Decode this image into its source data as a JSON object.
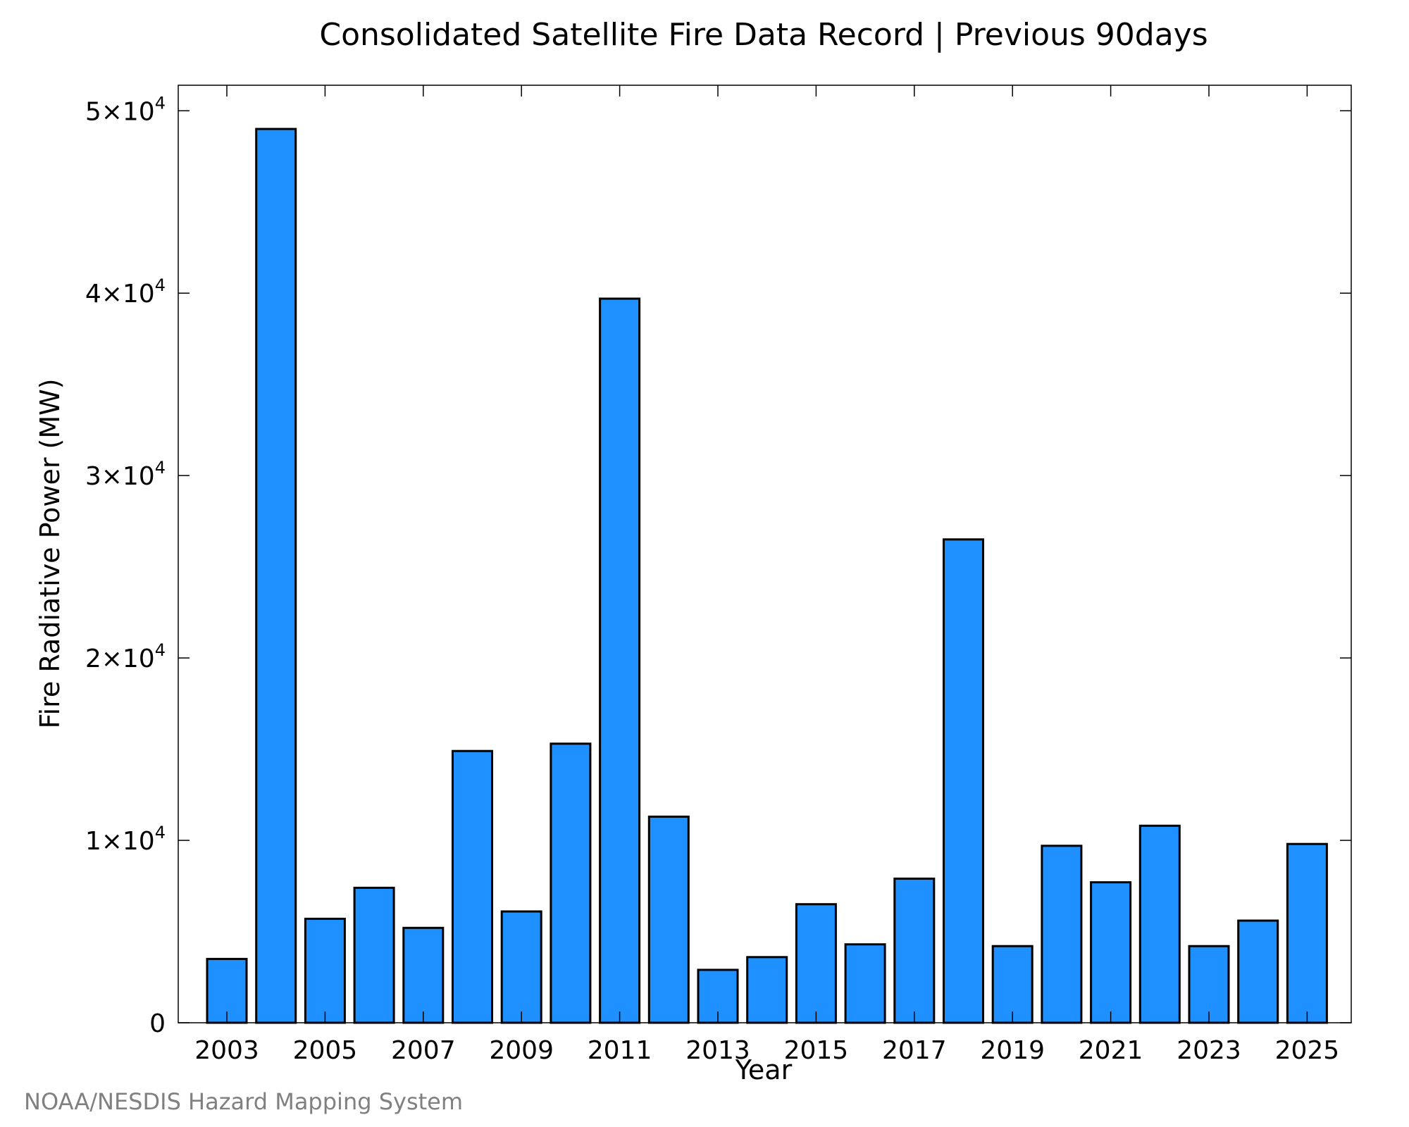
{
  "chart_data": {
    "type": "bar",
    "title": "Consolidated Satellite Fire Data Record | Previous 90days",
    "xlabel": "Year",
    "ylabel": "Fire Radiative Power (MW)",
    "categories": [
      "2003",
      "2004",
      "2005",
      "2006",
      "2007",
      "2008",
      "2009",
      "2010",
      "2011",
      "2012",
      "2013",
      "2014",
      "2015",
      "2016",
      "2017",
      "2018",
      "2019",
      "2020",
      "2021",
      "2022",
      "2023",
      "2024",
      "2025"
    ],
    "values": [
      3500,
      49000,
      5700,
      7400,
      5200,
      14900,
      6100,
      15300,
      39700,
      11300,
      2900,
      3600,
      6500,
      4300,
      7900,
      26500,
      4200,
      9700,
      7700,
      10800,
      4200,
      5600,
      9800
    ],
    "x_tick_labels": [
      "2003",
      "2005",
      "2007",
      "2009",
      "2011",
      "2013",
      "2015",
      "2017",
      "2019",
      "2021",
      "2023",
      "2025"
    ],
    "y_ticks": [
      {
        "value": 0,
        "label": "0",
        "exp": ""
      },
      {
        "value": 10000,
        "label": "1×10",
        "exp": "4"
      },
      {
        "value": 20000,
        "label": "2×10",
        "exp": "4"
      },
      {
        "value": 30000,
        "label": "3×10",
        "exp": "4"
      },
      {
        "value": 40000,
        "label": "4×10",
        "exp": "4"
      },
      {
        "value": 50000,
        "label": "5×10",
        "exp": "4"
      }
    ],
    "ylim": [
      0,
      51400
    ],
    "grid": false,
    "bar_color": "#1E90FF"
  },
  "credit": "NOAA/NESDIS Hazard Mapping System"
}
